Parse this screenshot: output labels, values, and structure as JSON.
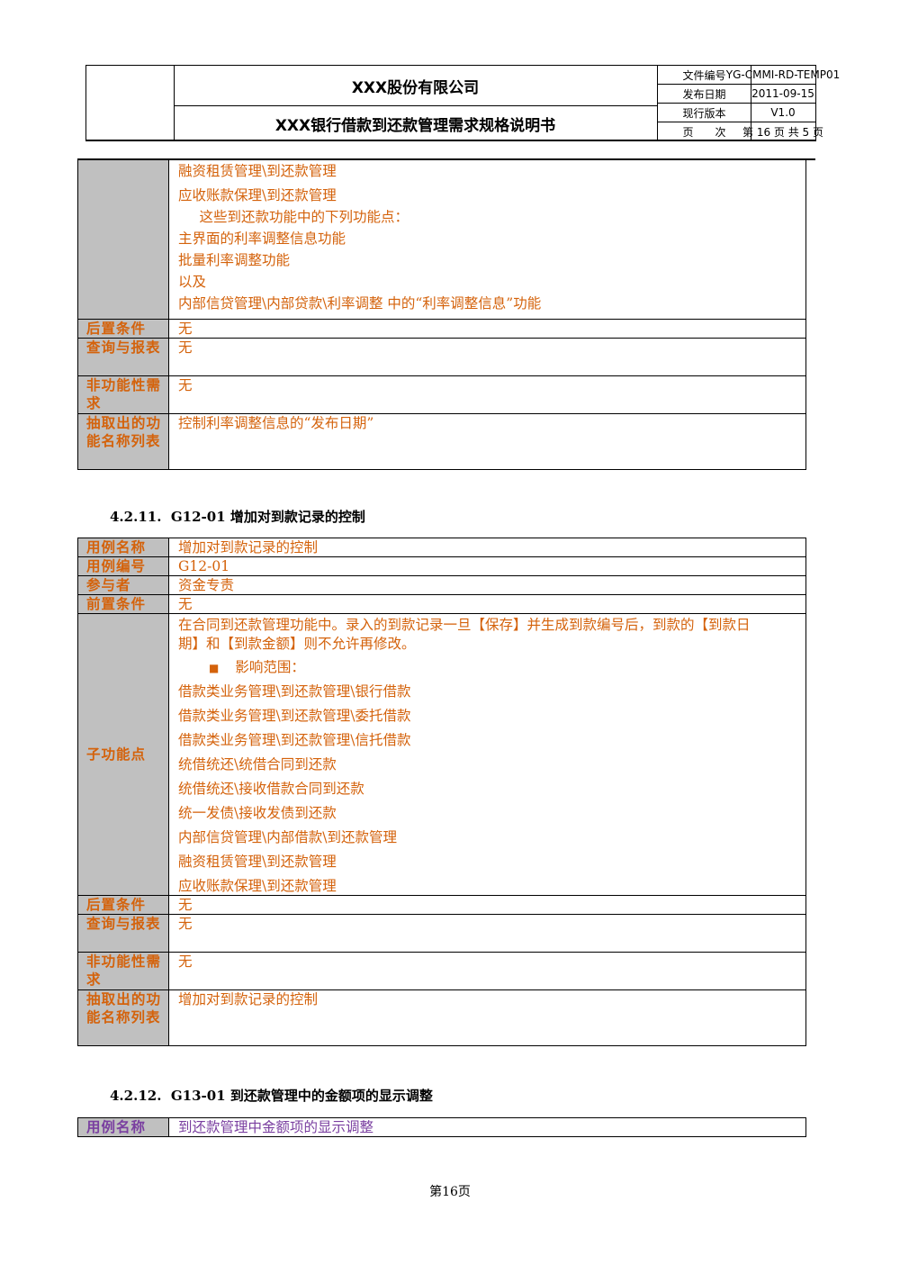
{
  "header": {
    "company": "XXX股份有限公司",
    "doc_title": "XXX银行借款到还款管理需求规格说明书",
    "meta": [
      {
        "key": "文件编号",
        "value": "YG-CMMI-RD-TEMP01"
      },
      {
        "key": "发布日期",
        "value": "2011-09-15"
      },
      {
        "key": "现行版本",
        "value": "V1.0"
      },
      {
        "key": "页　　次",
        "value": "第 16 页 共 5 页"
      }
    ]
  },
  "table1": {
    "cont_lines": [
      "融资租赁管理\\到还款管理",
      "应收账款保理\\到还款管理",
      "　这些到还款功能中的下列功能点：",
      "主界面的利率调整信息功能",
      "批量利率调整功能",
      "以及",
      "内部信贷管理\\内部贷款\\利率调整 中的“利率调整信息”功能"
    ],
    "rows": [
      {
        "label": "后置条件",
        "value": "无"
      },
      {
        "label": "查询与报表",
        "value": "无"
      },
      {
        "label": "非功能性需求",
        "value": "无"
      },
      {
        "label": "抽取出的功能名称列表",
        "value": "控制利率调整信息的“发布日期”"
      }
    ]
  },
  "section1": {
    "number": "4.2.11.",
    "title": "G12-01 增加对到款记录的控制"
  },
  "table2": {
    "top_rows": [
      {
        "label": "用例名称",
        "value": "增加对到款记录的控制"
      },
      {
        "label": "用例编号",
        "value": "G12-01"
      },
      {
        "label": "参与者",
        "value": "资金专责"
      },
      {
        "label": "前置条件",
        "value": "无"
      }
    ],
    "sub_label": "子功能点",
    "sub_intro": "在合同到还款管理功能中。录入的到款记录一旦【保存】并生成到款编号后，到款的【到款日期】和【到款金额】则不允许再修改。",
    "sub_intro_l1": "在合同到还款管理功能中。录入的到款记录一旦【保存】并生成到款编号后，到款的【到款日",
    "sub_intro_l2": "期】和【到款金额】则不允许再修改。",
    "bullet_text": "影响范围：",
    "scope": [
      "借款类业务管理\\到还款管理\\银行借款",
      "借款类业务管理\\到还款管理\\委托借款",
      "借款类业务管理\\到还款管理\\信托借款",
      "统借统还\\统借合同到还款",
      "统借统还\\接收借款合同到还款",
      "统一发债\\接收发债到还款",
      "内部信贷管理\\内部借款\\到还款管理",
      "融资租赁管理\\到还款管理",
      "应收账款保理\\到还款管理"
    ],
    "bottom_rows": [
      {
        "label": "后置条件",
        "value": "无"
      },
      {
        "label": "查询与报表",
        "value": "无"
      },
      {
        "label": "非功能性需求",
        "value": "无"
      },
      {
        "label": "抽取出的功能名称列表",
        "value": "增加对到款记录的控制"
      }
    ]
  },
  "section2": {
    "number": "4.2.12.",
    "title": "G13-01 到还款管理中的金额项的显示调整"
  },
  "table3": {
    "label": "用例名称",
    "value": "到还款管理中金额项的显示调整"
  },
  "footer": {
    "page": "第16页"
  },
  "colors": {
    "label_text": "#d4620b",
    "value_text": "#d4620b",
    "purple_text": "#7a3fa0",
    "label_bg": "#c0c0c0"
  }
}
